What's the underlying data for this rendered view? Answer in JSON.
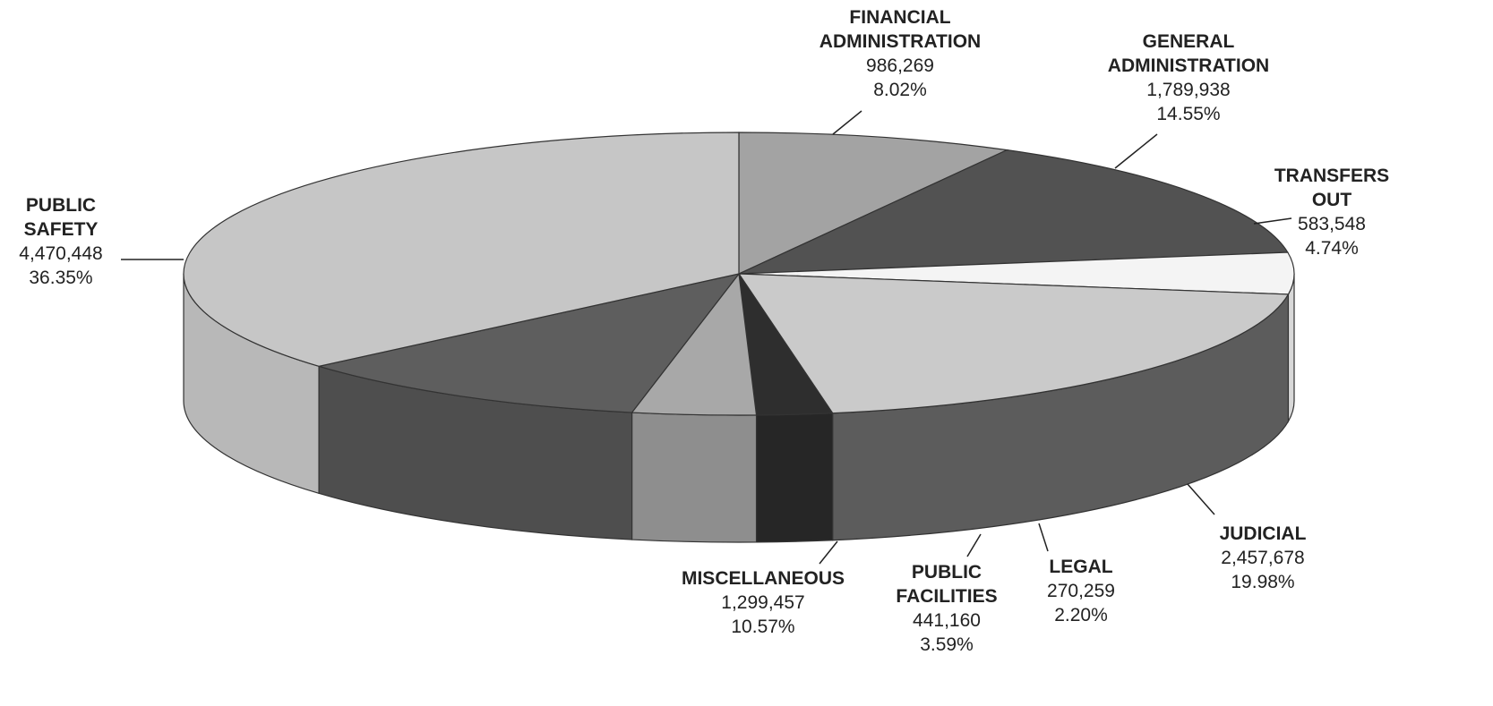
{
  "chart_data": {
    "type": "pie3d",
    "categories": [
      "FINANCIAL ADMINISTRATION",
      "GENERAL ADMINISTRATION",
      "TRANSFERS OUT",
      "JUDICIAL",
      "LEGAL",
      "PUBLIC FACILITIES",
      "MISCELLANEOUS",
      "PUBLIC SAFETY"
    ],
    "values": [
      986269,
      1789938,
      583548,
      2457678,
      270259,
      441160,
      1299457,
      4470448
    ],
    "value_labels": [
      "986,269",
      "1,789,938",
      "583,548",
      "2,457,678",
      "270,259",
      "441,160",
      "1,299,457",
      "4,470,448"
    ],
    "percents": [
      8.02,
      14.55,
      4.74,
      19.98,
      2.2,
      3.59,
      10.57,
      36.35
    ],
    "percent_labels": [
      "8.02%",
      "14.55%",
      "4.74%",
      "19.98%",
      "2.20%",
      "3.59%",
      "10.57%",
      "36.35%"
    ],
    "colors": [
      "#a3a3a3",
      "#525252",
      "#f4f4f4",
      "#cacaca",
      "#2e2e2e",
      "#a8a8a8",
      "#5e5e5e",
      "#c6c6c6"
    ],
    "side_colors": [
      "#8a8a8a",
      "#444444",
      "#d8d8d8",
      "#5c5c5c",
      "#262626",
      "#8e8e8e",
      "#4e4e4e",
      "#b8b8b8"
    ]
  }
}
